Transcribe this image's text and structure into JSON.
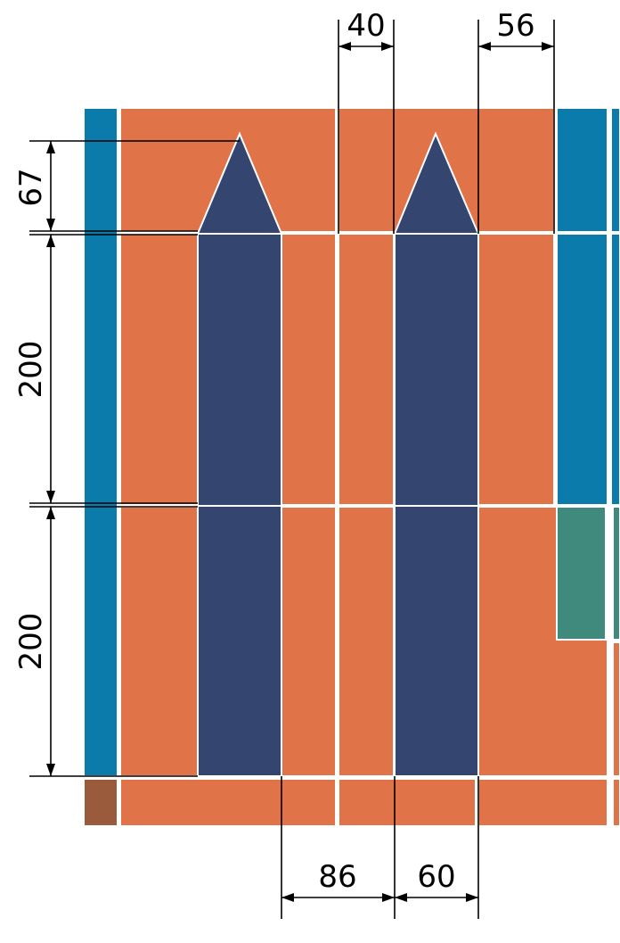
{
  "colors": {
    "blue": "#0a7bab",
    "orange": "#e07347",
    "navy": "#344570",
    "teal": "#3f8a7c",
    "brown": "#9a5b3c",
    "seam": "#ffffff",
    "dimension": "#000000"
  },
  "dimensions": {
    "top_gap": "40",
    "top_right": "56",
    "left_arrowhead": "67",
    "left_middle": "200",
    "left_lower": "200",
    "bottom_left": "86",
    "bottom_right": "60"
  }
}
